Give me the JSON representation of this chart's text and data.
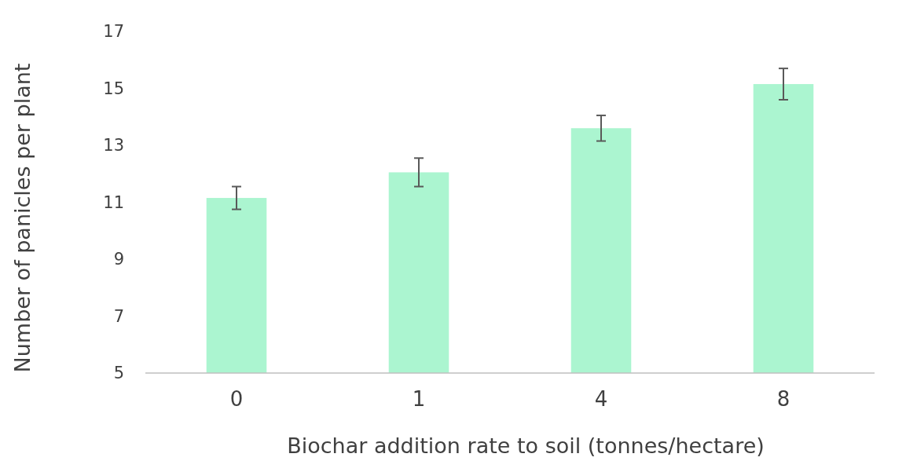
{
  "chart_data": {
    "type": "bar",
    "xlabel": "Biochar addition rate to soil (tonnes/hectare)",
    "ylabel": "Number of panicles per plant",
    "categories": [
      "0",
      "1",
      "4",
      "8"
    ],
    "values": [
      11.15,
      12.05,
      13.6,
      15.15
    ],
    "errors": [
      0.4,
      0.5,
      0.45,
      0.55
    ],
    "color": "#abf5d0",
    "ylim": [
      5,
      17
    ],
    "yticks": [
      5,
      7,
      9,
      11,
      13,
      15,
      17
    ],
    "grid": false
  }
}
